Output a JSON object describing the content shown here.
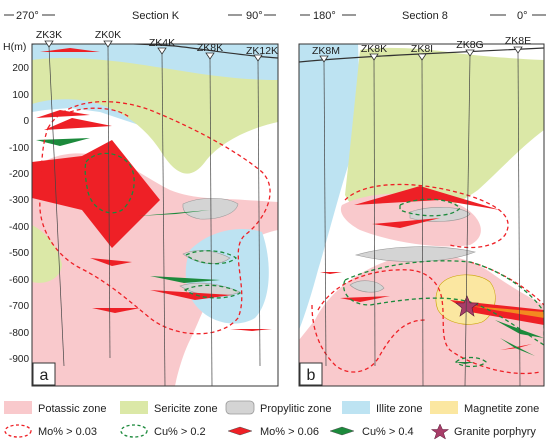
{
  "section_a": {
    "header_left": "270°",
    "header_title": "Section K",
    "header_right": "90°",
    "panel_letter": "a",
    "drillholes": [
      "ZK3K",
      "ZK0K",
      "ZK4K",
      "ZK8K",
      "ZK12K"
    ]
  },
  "section_b": {
    "header_left": "180°",
    "header_title": "Section 8",
    "header_right": "0°",
    "panel_letter": "b",
    "drillholes": [
      "ZK8M",
      "ZK8K",
      "ZK8I",
      "ZK8G",
      "ZK8E"
    ]
  },
  "axis": {
    "title": "H(m)",
    "ticks": [
      "200",
      "100",
      "0",
      "-100",
      "-200",
      "-300",
      "-400",
      "-500",
      "-600",
      "-700",
      "-800",
      "-900"
    ]
  },
  "legend": {
    "zones": [
      "Potassic zone",
      "Sericite zone",
      "Propylitic zone",
      "Illite zone",
      "Magnetite zone"
    ],
    "symbols": [
      "Mo% > 0.03",
      "Cu% > 0.2",
      "Mo% > 0.06",
      "Cu% > 0.4",
      "Granite porphyry"
    ]
  },
  "colors": {
    "potassic": "#f9c9cc",
    "sericite": "#dbe8a7",
    "propylitic": "#d4d4d4",
    "illite": "#bde3f2",
    "magnetite": "#fbe7a1",
    "mo_high": "#ee2026",
    "cu_high": "#1c8a3c",
    "porphyry_star": "#a83d69"
  }
}
